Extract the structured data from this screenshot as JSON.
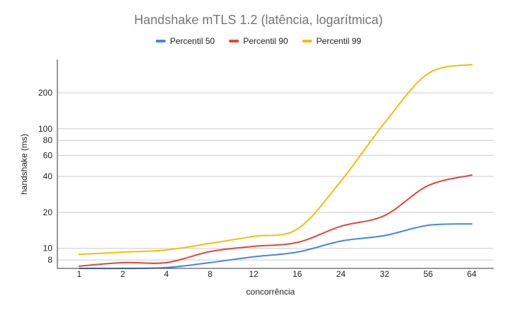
{
  "chart_data": {
    "type": "line",
    "title": "Handshake mTLS 1.2 (latência, logarítmica)",
    "xlabel": "concorrência",
    "ylabel": "handshake (ms)",
    "categories": [
      "1",
      "2",
      "4",
      "8",
      "12",
      "16",
      "24",
      "32",
      "56",
      "64"
    ],
    "y_scale": "log",
    "ylim": [
      6.8,
      380
    ],
    "yticks": [
      8,
      10,
      20,
      40,
      60,
      80,
      100,
      200
    ],
    "legend_position": "top",
    "grid": true,
    "smooth": true,
    "series": [
      {
        "name": "Percentil 50",
        "color": "#4285f4",
        "values": [
          6.8,
          6.8,
          6.9,
          7.6,
          8.5,
          9.3,
          11.5,
          12.8,
          15.6,
          16.0
        ]
      },
      {
        "name": "Percentil 90",
        "color": "#ea4335",
        "values": [
          7.1,
          7.6,
          7.6,
          9.4,
          10.4,
          11.2,
          15.3,
          18.8,
          33.5,
          41.0
        ]
      },
      {
        "name": "Percentil 99",
        "color": "#fbbc04",
        "values": [
          8.9,
          9.3,
          9.7,
          11.0,
          12.6,
          14.5,
          36.5,
          112.0,
          290.0,
          345.0
        ]
      }
    ]
  }
}
